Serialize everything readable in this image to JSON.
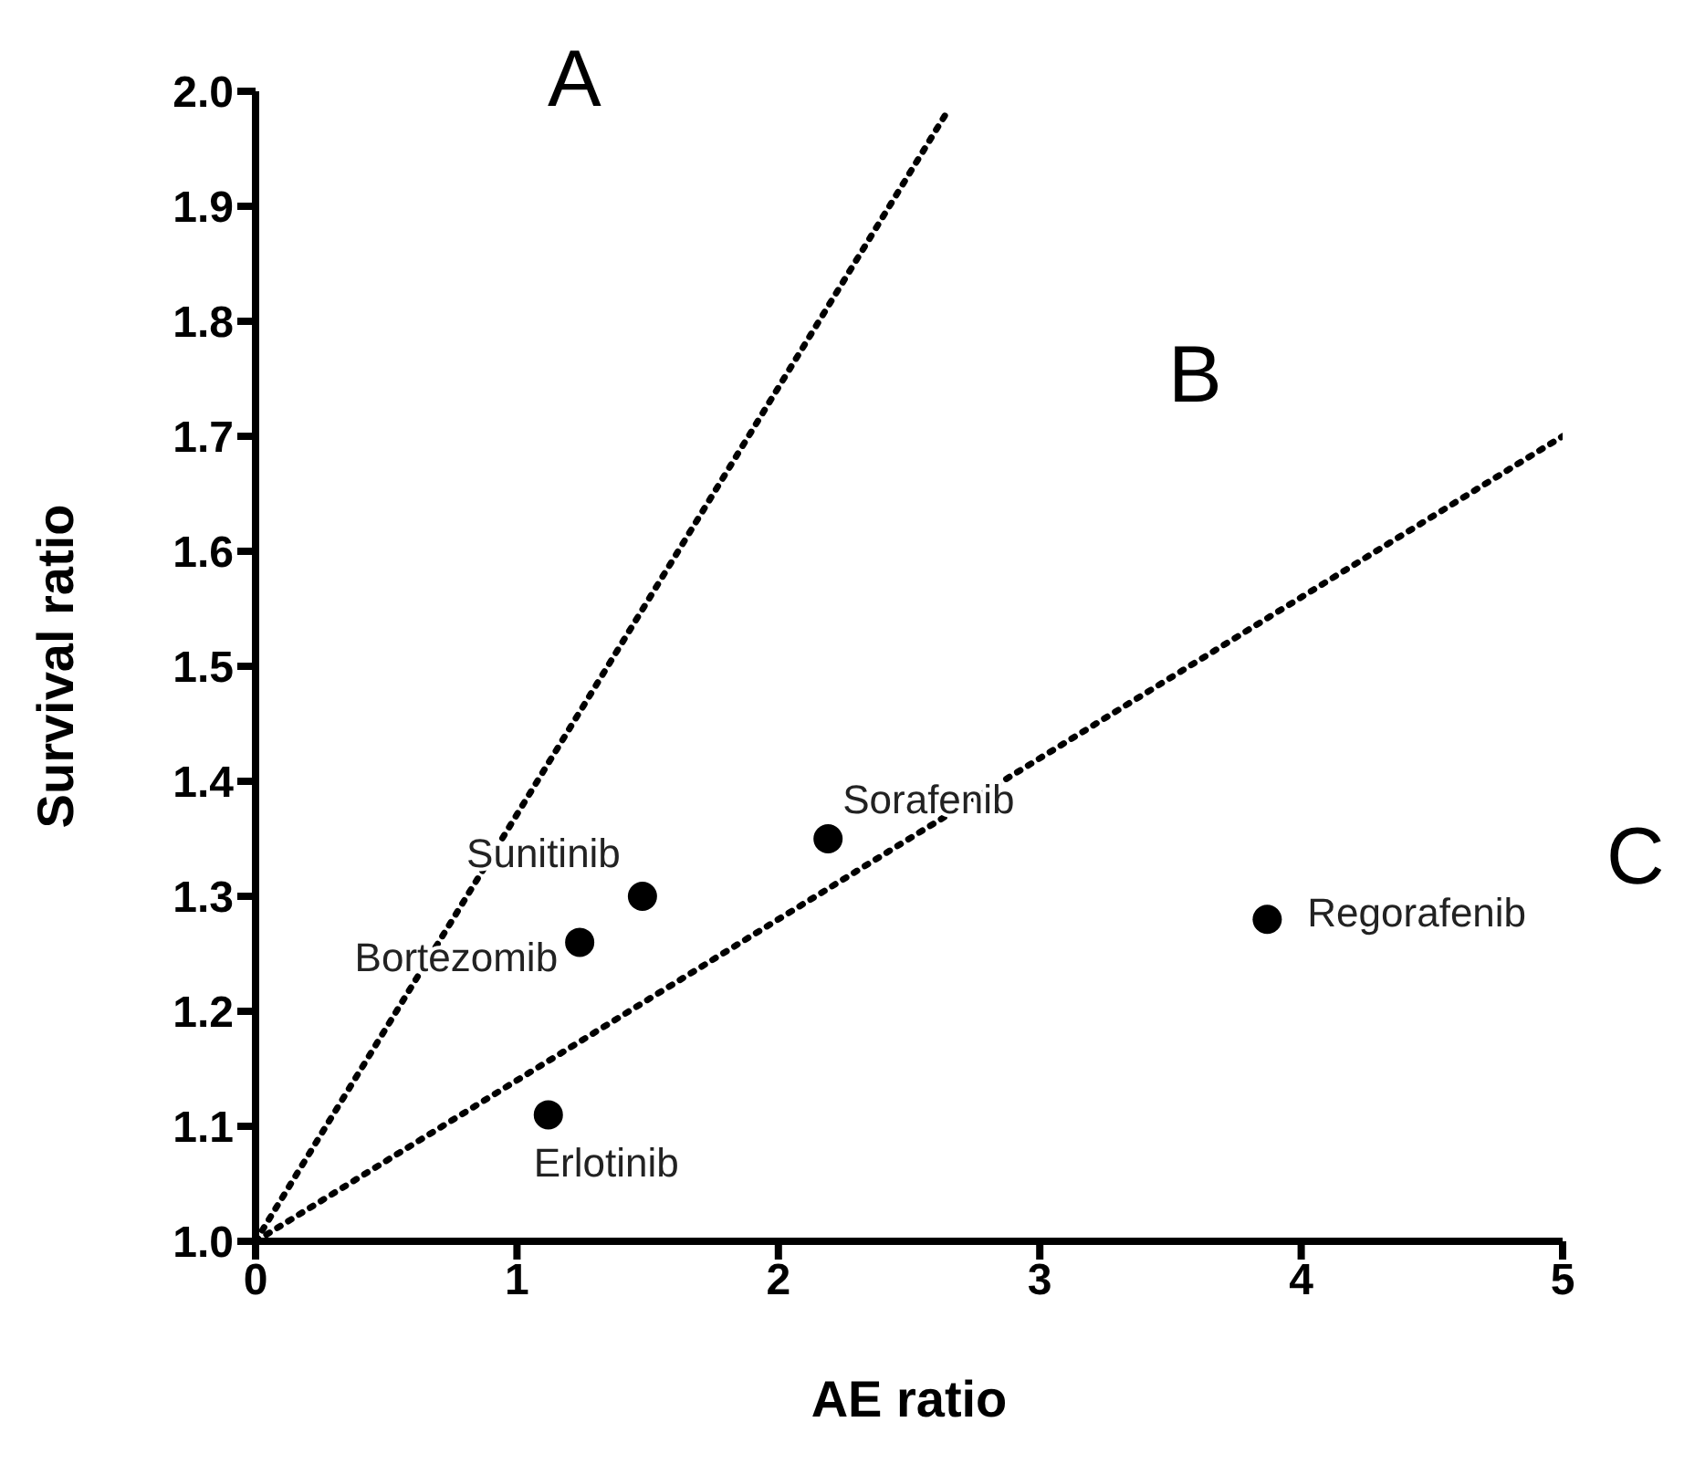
{
  "chart_data": {
    "type": "scatter",
    "xlabel": "AE ratio",
    "ylabel": "Survival ratio",
    "xlim": [
      0,
      5
    ],
    "xticks": [
      0,
      1,
      2,
      3,
      4,
      5
    ],
    "ylim": [
      1,
      2
    ],
    "yticks": [
      {
        "value": 1,
        "label": "1.0"
      },
      {
        "value": 1.1,
        "label": "1.1"
      },
      {
        "value": 1.2,
        "label": "1.2"
      },
      {
        "value": 1.3,
        "label": "1.3"
      },
      {
        "value": 1.4,
        "label": "1.4"
      },
      {
        "value": 1.5,
        "label": "1.5"
      },
      {
        "value": 1.6,
        "label": "1.6"
      },
      {
        "value": 1.7,
        "label": "1.7"
      },
      {
        "value": 1.8,
        "label": "1.8"
      },
      {
        "value": 1.9,
        "label": "1.9"
      },
      {
        "value": 2,
        "label": "2.0"
      }
    ],
    "marker": "circle",
    "grid": false,
    "legend": false,
    "series": [
      {
        "type": "line",
        "color": "#000000",
        "line_style": "dotted",
        "marker": "none",
        "x": [
          0,
          2.64
        ],
        "values": [
          1,
          1.98
        ]
      },
      {
        "type": "line",
        "color": "#000000",
        "line_style": "dotted",
        "marker": "none",
        "x": [
          0,
          5
        ],
        "values": [
          1,
          1.7
        ]
      },
      {
        "name": "Erlotinib",
        "color": "#000000",
        "x": [
          1.12
        ],
        "values": [
          1.11
        ]
      },
      {
        "name": "Bortezomib",
        "color": "#000000",
        "x": [
          1.24
        ],
        "values": [
          1.26
        ]
      },
      {
        "name": "Sunitinib",
        "color": "#000000",
        "x": [
          1.48
        ],
        "values": [
          1.3
        ]
      },
      {
        "name": "Sorafenib",
        "color": "#000000",
        "x": [
          2.19
        ],
        "values": [
          1.35
        ]
      },
      {
        "name": "Regorafenib",
        "color": "#000000",
        "x": [
          3.87
        ],
        "values": [
          1.28
        ]
      }
    ],
    "annotations": [
      "A",
      "B",
      "C"
    ]
  }
}
